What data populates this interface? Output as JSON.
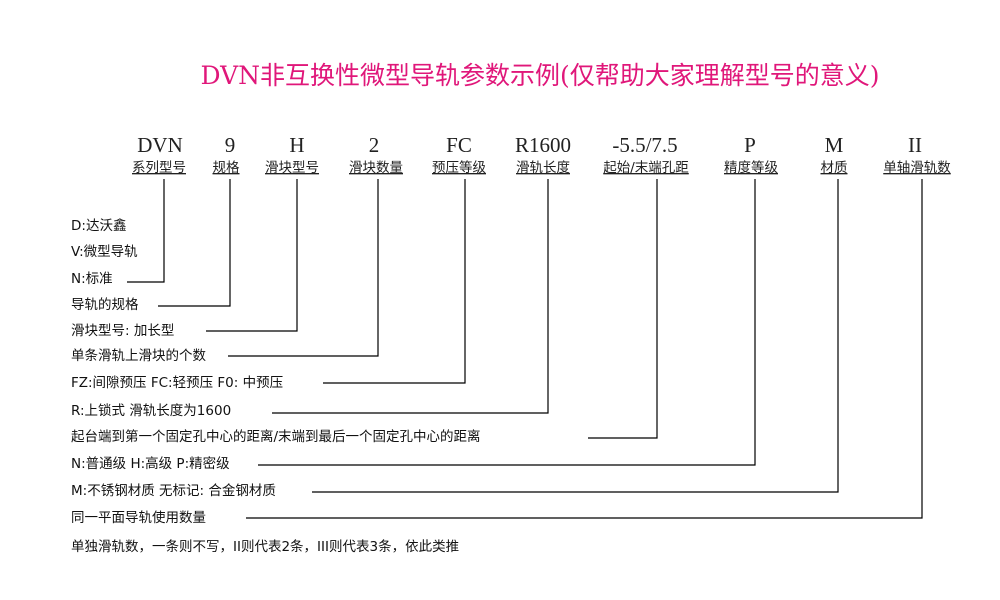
{
  "title": "DVN非互换性微型导轨参数示例(仅帮助大家理解型号的意义)",
  "codes": [
    {
      "code": "DVN",
      "label": "系列型号"
    },
    {
      "code": "9",
      "label": "规格"
    },
    {
      "code": "H",
      "label": "滑块型号"
    },
    {
      "code": "2",
      "label": "滑块数量"
    },
    {
      "code": "FC",
      "label": "预压等级"
    },
    {
      "code": "R1600",
      "label": "滑轨长度"
    },
    {
      "code": "-5.5/7.5",
      "label": "起始/末端孔距"
    },
    {
      "code": "P",
      "label": "精度等级"
    },
    {
      "code": "M",
      "label": "材质"
    },
    {
      "code": "II",
      "label": "单轴滑轨数"
    }
  ],
  "descriptions": [
    "D:达沃鑫",
    "V:微型导轨",
    "N:标准",
    "导轨的规格",
    "滑块型号: 加长型",
    "单条滑轨上滑块的个数",
    "FZ:间隙预压 FC:轻预压 F0: 中预压",
    "R:上锁式 滑轨长度为1600",
    "起台端到第一个固定孔中心的距离/末端到最后一个固定孔中心的距离",
    "N:普通级 H:高级 P:精密级",
    "M:不锈钢材质 无标记: 合金钢材质",
    "同一平面导轨使用数量",
    "单独滑轨数，一条则不写，II则代表2条，III则代表3条，依此类推"
  ],
  "colors": {
    "title": "#e0177a",
    "text": "#222222",
    "lines": "#000000"
  }
}
